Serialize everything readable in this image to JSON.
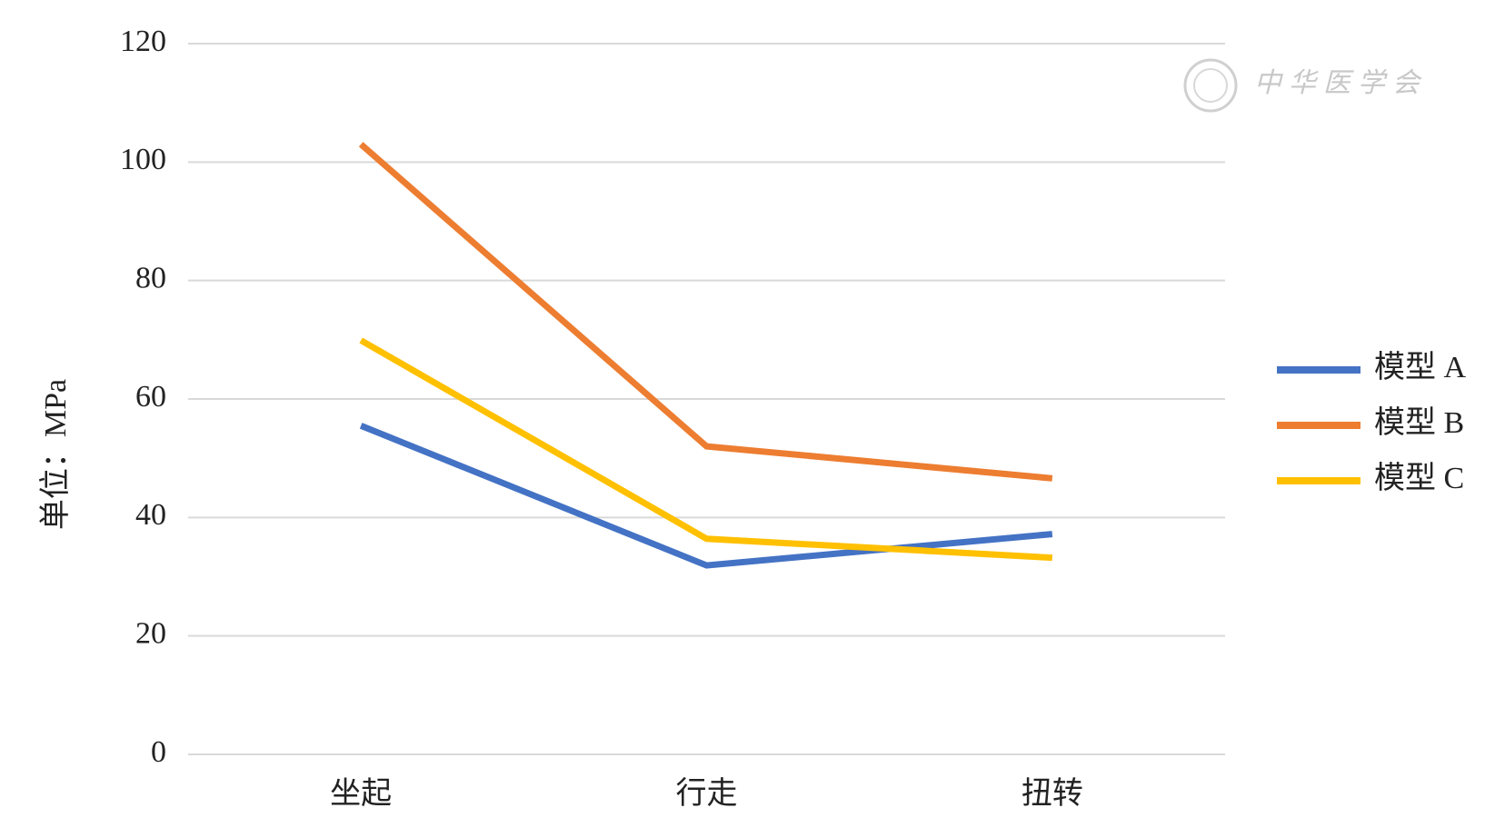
{
  "chart_data": {
    "type": "line",
    "y_label": "单位：MPa",
    "watermark": "中华医学会",
    "categories": [
      "坐起",
      "行走",
      "扭转"
    ],
    "series": [
      {
        "name": "模型 A",
        "color": "#4472c4",
        "values": [
          55.5,
          31.9,
          37.2
        ]
      },
      {
        "name": "模型 B",
        "color": "#ed7d31",
        "values": [
          103.0,
          52.0,
          46.6
        ]
      },
      {
        "name": "模型 C",
        "color": "#ffc000",
        "values": [
          69.9,
          36.4,
          33.2
        ]
      }
    ],
    "ylim": [
      0,
      120
    ],
    "yticks": [
      0,
      20,
      40,
      60,
      80,
      100,
      120
    ],
    "grid": true,
    "legend": "right"
  }
}
